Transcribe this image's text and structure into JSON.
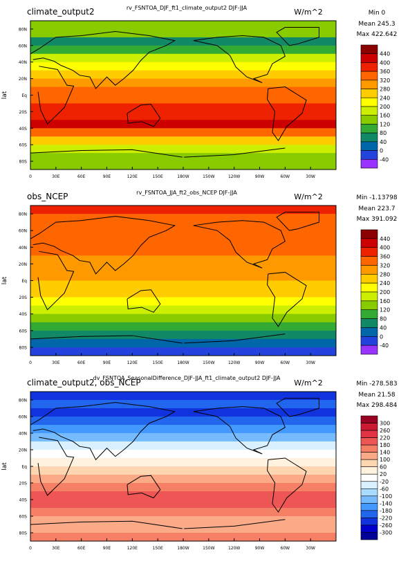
{
  "chart_data": [
    {
      "type": "heatmap",
      "panel_title": "climate_output2",
      "title": "rv_FSNTOA_DJF_ft1_climate_output2  DJF-JJA",
      "units": "W/m^2",
      "ylabel": "lat",
      "stats": {
        "min": "Min 0",
        "mean": "Mean 245.3",
        "max": "Max 422.642"
      },
      "x_ticks": [
        "0",
        "30E",
        "60E",
        "90E",
        "120E",
        "150E",
        "180W",
        "150W",
        "120W",
        "90W",
        "60W",
        "30W"
      ],
      "y_ticks": [
        "80N",
        "60N",
        "40N",
        "20N",
        "Eq",
        "20S",
        "40S",
        "60S",
        "80S"
      ],
      "colorbar_levels": [
        "440",
        "400",
        "360",
        "320",
        "280",
        "240",
        "200",
        "160",
        "120",
        "80",
        "40",
        "0",
        "-40"
      ],
      "colorbar_colors": [
        "#8b0000",
        "#cc0000",
        "#ee2200",
        "#ff6600",
        "#ff9900",
        "#ffcc00",
        "#ffff00",
        "#ccee00",
        "#88cc00",
        "#33aa33",
        "#118866",
        "#0066aa",
        "#2244dd",
        "#9933ff"
      ],
      "zonal_bands": [
        {
          "lat": 85,
          "value": 150
        },
        {
          "lat": 75,
          "value": 130
        },
        {
          "lat": 65,
          "value": 60
        },
        {
          "lat": 55,
          "value": 110
        },
        {
          "lat": 45,
          "value": 170
        },
        {
          "lat": 35,
          "value": 225
        },
        {
          "lat": 25,
          "value": 275
        },
        {
          "lat": 15,
          "value": 305
        },
        {
          "lat": 5,
          "value": 320
        },
        {
          "lat": -5,
          "value": 345
        },
        {
          "lat": -15,
          "value": 365
        },
        {
          "lat": -25,
          "value": 385
        },
        {
          "lat": -35,
          "value": 400
        },
        {
          "lat": -45,
          "value": 340
        },
        {
          "lat": -55,
          "value": 265
        },
        {
          "lat": -65,
          "value": 175
        },
        {
          "lat": -75,
          "value": 140
        },
        {
          "lat": -85,
          "value": 150
        }
      ]
    },
    {
      "type": "heatmap",
      "panel_title": "obs_NCEP",
      "title": "rv_FSNTOA_JJA_ft2_obs_NCEP  DJF-JJA",
      "units": "W/m^2",
      "ylabel": "lat",
      "stats": {
        "min": "Min -1.13798",
        "mean": "Mean 223.7",
        "max": "Max 391.092"
      },
      "x_ticks": [
        "0",
        "30E",
        "60E",
        "90E",
        "120E",
        "150E",
        "180W",
        "150W",
        "120W",
        "90W",
        "60W",
        "30W"
      ],
      "y_ticks": [
        "80N",
        "60N",
        "40N",
        "20N",
        "Eq",
        "20S",
        "40S",
        "60S",
        "80S"
      ],
      "colorbar_levels": [
        "440",
        "400",
        "360",
        "320",
        "280",
        "240",
        "200",
        "160",
        "120",
        "80",
        "40",
        "0",
        "-40"
      ],
      "colorbar_colors": [
        "#8b0000",
        "#cc0000",
        "#ee2200",
        "#ff6600",
        "#ff9900",
        "#ffcc00",
        "#ffff00",
        "#ccee00",
        "#88cc00",
        "#33aa33",
        "#118866",
        "#0066aa",
        "#2244dd",
        "#9933ff"
      ],
      "zonal_bands": [
        {
          "lat": 85,
          "value": 360
        },
        {
          "lat": 75,
          "value": 340
        },
        {
          "lat": 65,
          "value": 320
        },
        {
          "lat": 55,
          "value": 325
        },
        {
          "lat": 45,
          "value": 335
        },
        {
          "lat": 35,
          "value": 330
        },
        {
          "lat": 25,
          "value": 315
        },
        {
          "lat": 15,
          "value": 295
        },
        {
          "lat": 5,
          "value": 285
        },
        {
          "lat": -5,
          "value": 275
        },
        {
          "lat": -15,
          "value": 255
        },
        {
          "lat": -25,
          "value": 225
        },
        {
          "lat": -35,
          "value": 185
        },
        {
          "lat": -45,
          "value": 140
        },
        {
          "lat": -55,
          "value": 95
        },
        {
          "lat": -65,
          "value": 45
        },
        {
          "lat": -75,
          "value": 10
        },
        {
          "lat": -85,
          "value": -5
        }
      ]
    },
    {
      "type": "heatmap",
      "panel_title": "climate_output2, obs_NCEP",
      "title": "dv_FSNTOA_SeasonalDifference_DJF-JJA_ft1_climate_output2  DJF-JJA",
      "units": "W/m^2",
      "ylabel": "lat",
      "stats": {
        "min": "Min -278.583",
        "mean": "Mean 21.58",
        "max": "Max 298.484"
      },
      "x_ticks": [
        "0",
        "30E",
        "60E",
        "90E",
        "120E",
        "150E",
        "180W",
        "150W",
        "120W",
        "90W",
        "60W",
        "30W"
      ],
      "y_ticks": [
        "80N",
        "60N",
        "40N",
        "20N",
        "Eq",
        "20S",
        "40S",
        "60S",
        "80S"
      ],
      "colorbar_levels": [
        "300",
        "260",
        "220",
        "180",
        "140",
        "100",
        "60",
        "20",
        "-20",
        "-60",
        "-100",
        "-140",
        "-180",
        "-220",
        "-260",
        "-300"
      ],
      "colorbar_colors": [
        "#990022",
        "#cc1a33",
        "#e23344",
        "#ee5555",
        "#f58066",
        "#fbaa88",
        "#fdd5b0",
        "#fff3e0",
        "#ffffff",
        "#d8f0ff",
        "#aadcff",
        "#77bbff",
        "#4499ff",
        "#2266ee",
        "#1133dd",
        "#0000cc",
        "#000099"
      ],
      "zonal_bands": [
        {
          "lat": 85,
          "value": -230
        },
        {
          "lat": 75,
          "value": -220
        },
        {
          "lat": 65,
          "value": -250
        },
        {
          "lat": 55,
          "value": -210
        },
        {
          "lat": 45,
          "value": -160
        },
        {
          "lat": 35,
          "value": -110
        },
        {
          "lat": 25,
          "value": -40
        },
        {
          "lat": 15,
          "value": 10
        },
        {
          "lat": 5,
          "value": 30
        },
        {
          "lat": -5,
          "value": 60
        },
        {
          "lat": -15,
          "value": 110
        },
        {
          "lat": -25,
          "value": 160
        },
        {
          "lat": -35,
          "value": 215
        },
        {
          "lat": -45,
          "value": 200
        },
        {
          "lat": -55,
          "value": 175
        },
        {
          "lat": -65,
          "value": 135
        },
        {
          "lat": -75,
          "value": 130
        },
        {
          "lat": -85,
          "value": 150
        }
      ]
    }
  ]
}
